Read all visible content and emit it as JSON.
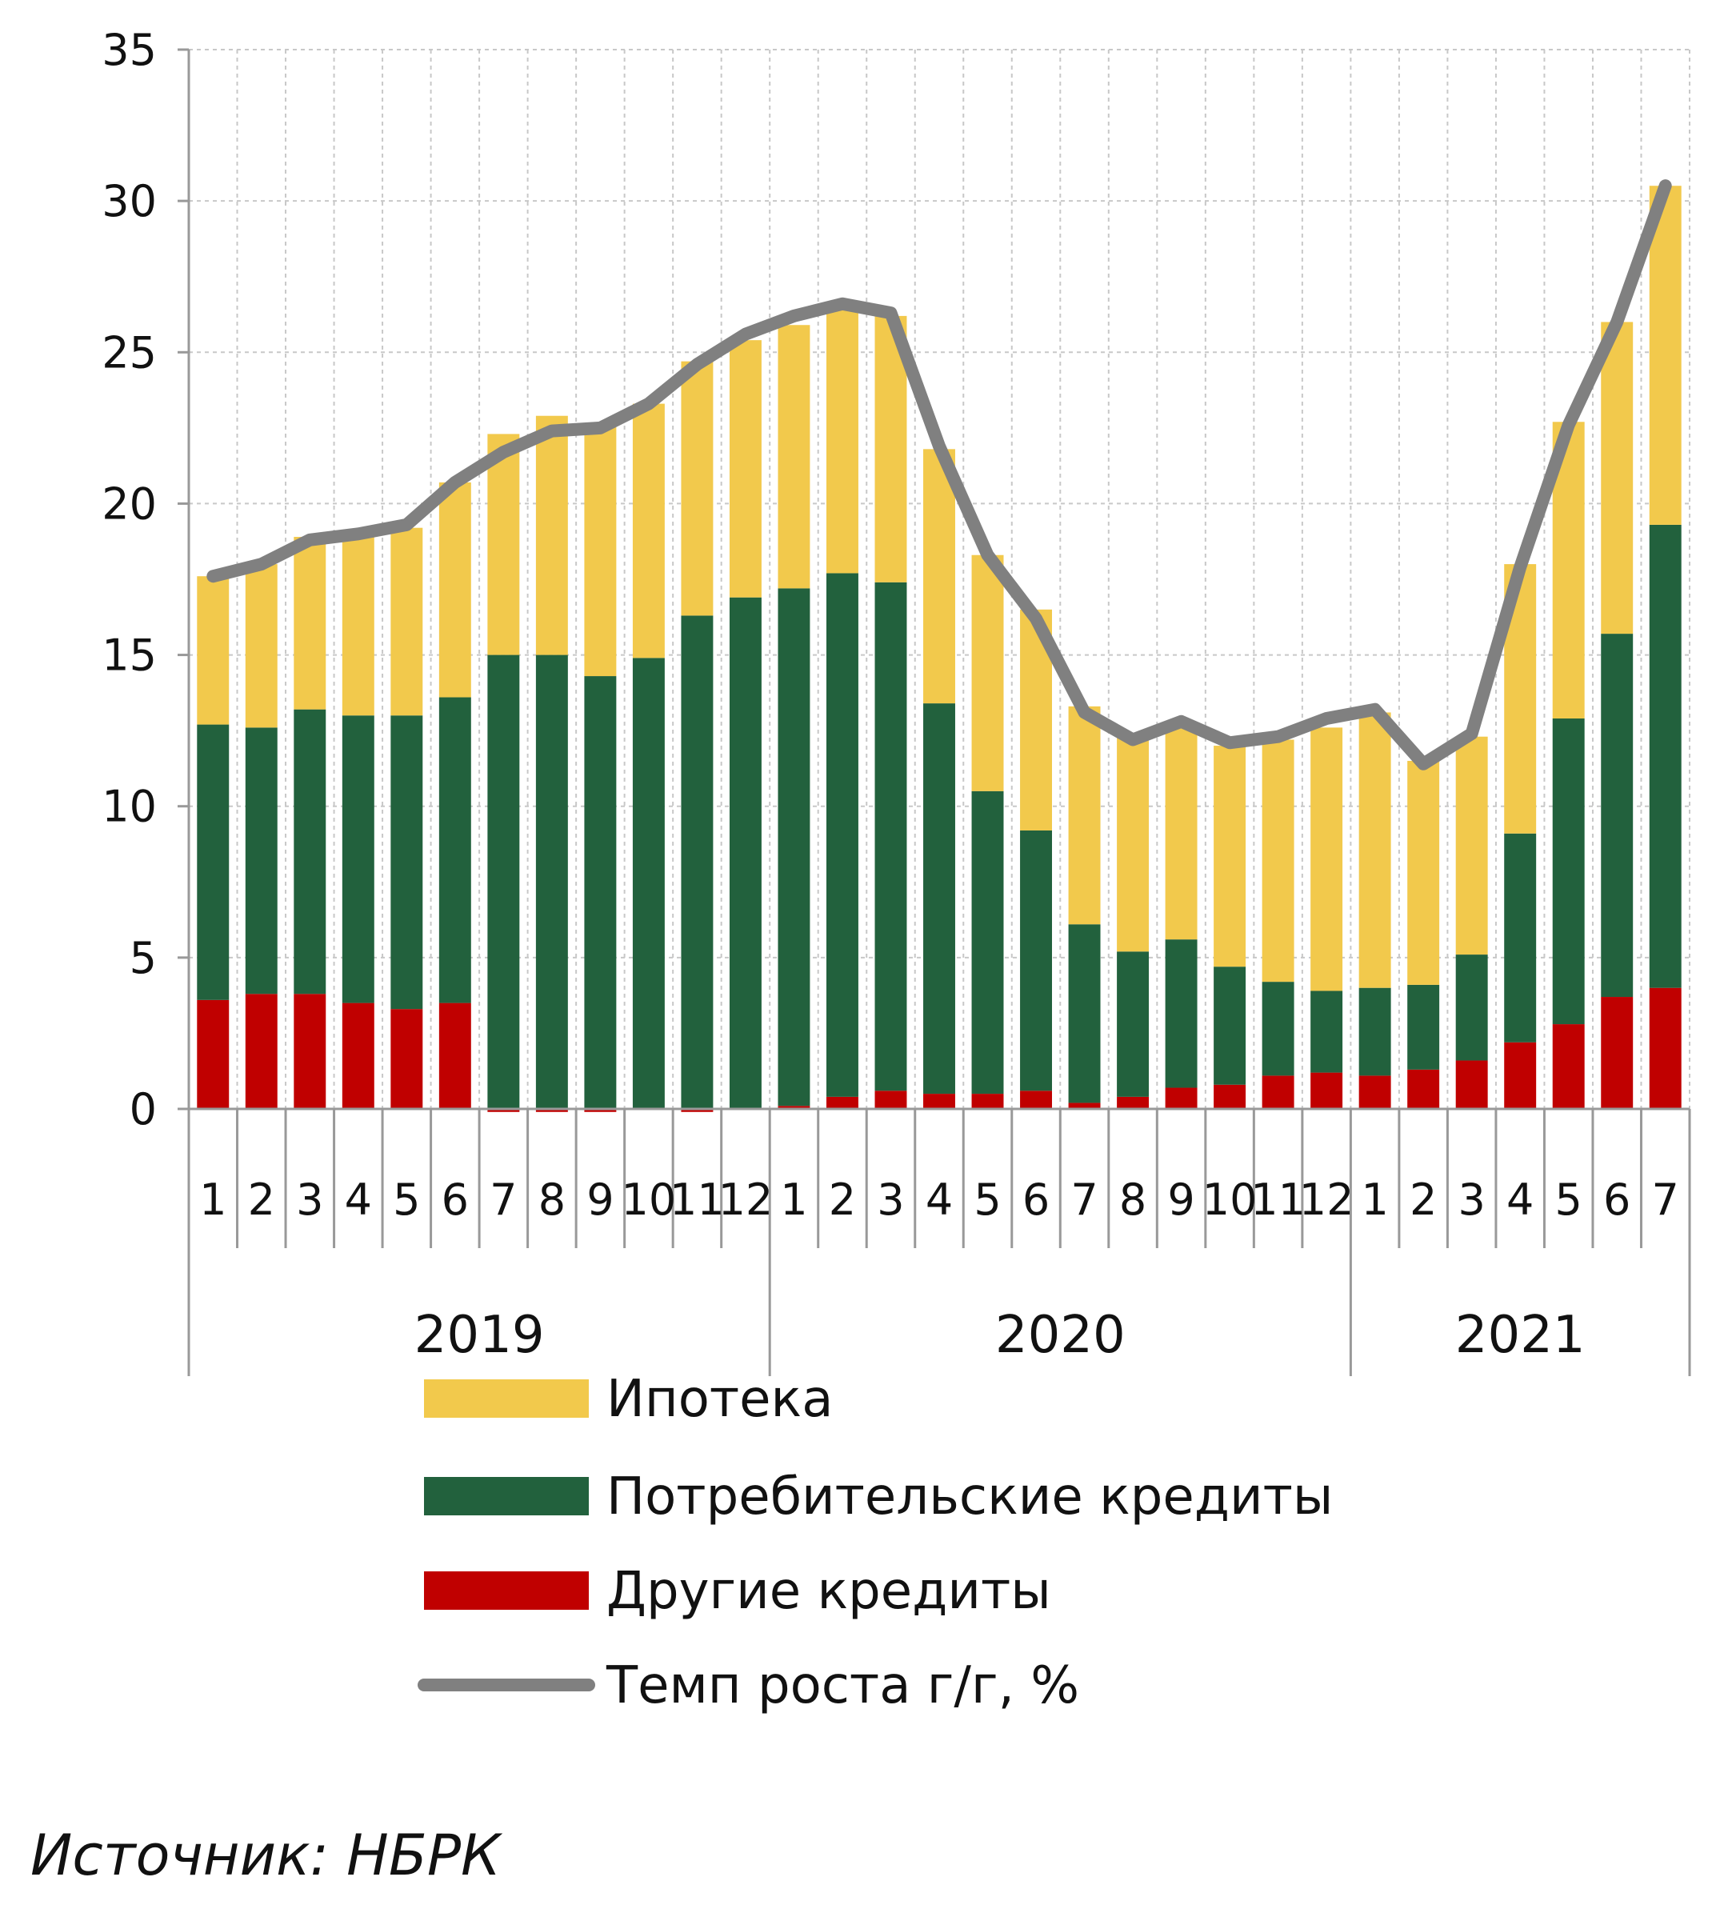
{
  "chart_data": {
    "type": "bar",
    "stacked": true,
    "ylim": [
      0,
      35
    ],
    "yticks": [
      0,
      5,
      10,
      15,
      20,
      25,
      30,
      35
    ],
    "grid": true,
    "legend": "bottom",
    "categories": [
      "1",
      "2",
      "3",
      "4",
      "5",
      "6",
      "7",
      "8",
      "9",
      "10",
      "11",
      "12",
      "1",
      "2",
      "3",
      "4",
      "5",
      "6",
      "7",
      "8",
      "9",
      "10",
      "11",
      "12",
      "1",
      "2",
      "3",
      "4",
      "5",
      "6",
      "7"
    ],
    "years": [
      {
        "label": "2019",
        "start": 0,
        "count": 12
      },
      {
        "label": "2020",
        "start": 12,
        "count": 12
      },
      {
        "label": "2021",
        "start": 24,
        "count": 7
      }
    ],
    "series": [
      {
        "name": "Другие кредиты",
        "color": "#c00000",
        "values": [
          3.6,
          3.8,
          3.8,
          3.5,
          3.3,
          3.5,
          -0.1,
          -0.1,
          -0.1,
          0,
          -0.1,
          0,
          0.1,
          0.4,
          0.6,
          0.5,
          0.5,
          0.6,
          0.2,
          0.4,
          0.7,
          0.8,
          1.1,
          1.2,
          1.1,
          1.3,
          1.6,
          2.2,
          2.8,
          3.7,
          4.0
        ]
      },
      {
        "name": "Потребительские кредиты",
        "color": "#22613d",
        "values": [
          9.1,
          8.8,
          9.4,
          9.5,
          9.7,
          10.1,
          15.0,
          15.0,
          14.3,
          14.9,
          16.3,
          16.9,
          17.1,
          17.3,
          16.8,
          12.9,
          10.0,
          8.6,
          5.9,
          4.8,
          4.9,
          3.9,
          3.1,
          2.7,
          2.9,
          2.8,
          3.5,
          6.9,
          10.1,
          12.0,
          15.3
        ]
      },
      {
        "name": "Ипотека",
        "color": "#f2c94c",
        "values": [
          4.9,
          5.4,
          5.7,
          5.9,
          6.2,
          7.1,
          7.3,
          7.9,
          8.3,
          8.4,
          8.4,
          8.5,
          8.7,
          8.8,
          8.8,
          8.4,
          7.8,
          7.3,
          7.2,
          7.1,
          7.1,
          7.3,
          8.0,
          8.7,
          9.1,
          7.4,
          7.2,
          8.9,
          9.8,
          10.3,
          11.2
        ]
      }
    ],
    "line": {
      "name": "Темп роста г/г, %",
      "color": "#808080",
      "values": [
        17.6,
        18.0,
        18.8,
        19.0,
        19.3,
        20.7,
        21.7,
        22.4,
        22.5,
        23.3,
        24.6,
        25.6,
        26.2,
        26.6,
        26.3,
        21.9,
        18.3,
        16.2,
        13.1,
        12.2,
        12.8,
        12.1,
        12.3,
        12.9,
        13.2,
        11.4,
        12.4,
        17.9,
        22.6,
        26.0,
        30.5
      ]
    }
  },
  "source": "Источник: НБРК"
}
